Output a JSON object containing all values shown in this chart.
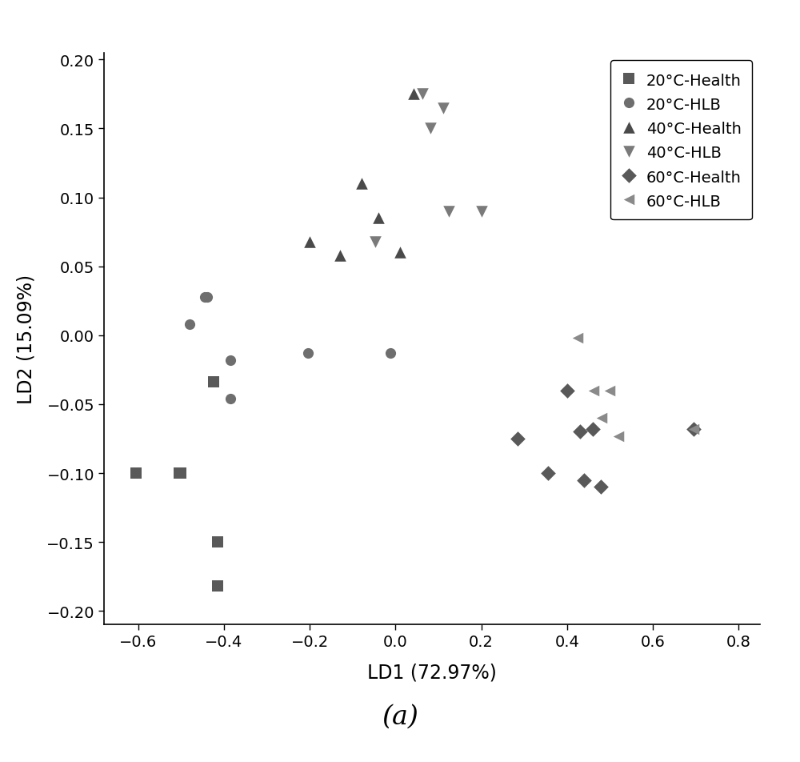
{
  "title_label": "(a)",
  "xlabel": "LD1 (72.97%)",
  "ylabel": "LD2 (15.09%)",
  "xlim": [
    -0.68,
    0.85
  ],
  "ylim": [
    -0.21,
    0.205
  ],
  "xticks": [
    -0.6,
    -0.4,
    -0.2,
    0.0,
    0.2,
    0.4,
    0.6,
    0.8
  ],
  "yticks": [
    -0.2,
    -0.15,
    -0.1,
    -0.05,
    0.0,
    0.05,
    0.1,
    0.15,
    0.2
  ],
  "series": [
    {
      "label": "20°C-Health",
      "marker": "s",
      "color": "#595959",
      "markersize": 90,
      "x": [
        -0.605,
        -0.505,
        -0.5,
        -0.425,
        -0.415,
        -0.415
      ],
      "y": [
        -0.1,
        -0.1,
        -0.1,
        -0.034,
        -0.15,
        -0.182
      ]
    },
    {
      "label": "20°C-HLB",
      "marker": "o",
      "color": "#6e6e6e",
      "markersize": 90,
      "x": [
        -0.48,
        -0.445,
        -0.44,
        -0.385,
        -0.385,
        -0.205,
        -0.012
      ],
      "y": [
        0.008,
        0.028,
        0.028,
        -0.018,
        -0.046,
        -0.013,
        -0.013
      ]
    },
    {
      "label": "40°C-Health",
      "marker": "^",
      "color": "#4a4a4a",
      "markersize": 110,
      "x": [
        -0.2,
        -0.13,
        -0.08,
        -0.04,
        0.01,
        0.042
      ],
      "y": [
        0.068,
        0.058,
        0.11,
        0.085,
        0.06,
        0.175
      ]
    },
    {
      "label": "40°C-HLB",
      "marker": "v",
      "color": "#7a7a7a",
      "markersize": 110,
      "x": [
        -0.048,
        0.062,
        0.082,
        0.112,
        0.125,
        0.2
      ],
      "y": [
        0.068,
        0.175,
        0.15,
        0.165,
        0.09,
        0.09
      ]
    },
    {
      "label": "60°C-Health",
      "marker": "D",
      "color": "#595959",
      "markersize": 90,
      "x": [
        0.285,
        0.355,
        0.4,
        0.43,
        0.44,
        0.46,
        0.478,
        0.695
      ],
      "y": [
        -0.075,
        -0.1,
        -0.04,
        -0.07,
        -0.105,
        -0.068,
        -0.11,
        -0.068
      ]
    },
    {
      "label": "60°C-HLB",
      "marker": "<",
      "color": "#8a8a8a",
      "markersize": 95,
      "x": [
        0.425,
        0.462,
        0.48,
        0.5,
        0.52,
        0.695
      ],
      "y": [
        -0.002,
        -0.04,
        -0.06,
        -0.04,
        -0.073,
        -0.068
      ]
    }
  ],
  "legend_fontsize": 14,
  "axis_fontsize": 17,
  "tick_fontsize": 14,
  "title_fontsize": 24,
  "background_color": "#ffffff"
}
